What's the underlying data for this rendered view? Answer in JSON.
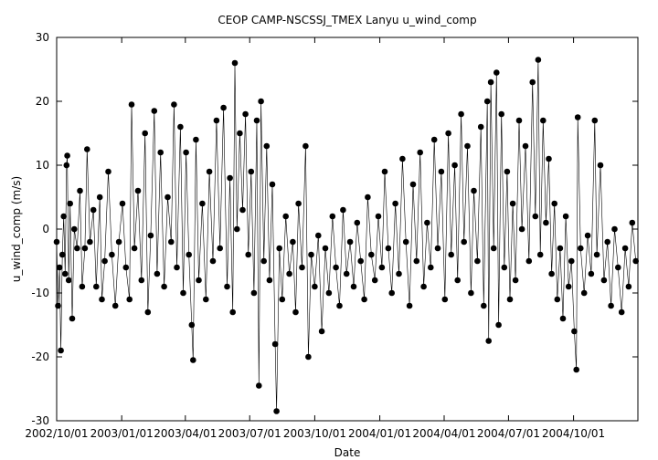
{
  "chart_data": {
    "type": "scatter",
    "title": "CEOP CAMP-NSCSSJ_TMEX Lanyu  u_wind_comp",
    "xlabel": "Date",
    "ylabel": "u_wind_comp (m/s)",
    "x_type": "date",
    "xlim": [
      "2002-10-01",
      "2004-12-31"
    ],
    "ylim": [
      -30,
      30
    ],
    "y_ticks": [
      30,
      20,
      10,
      0,
      -10,
      -20,
      -30
    ],
    "x_tick_labels": [
      "2002/10/01",
      "2003/01/01",
      "2003/04/01",
      "2003/07/01",
      "2003/10/01",
      "2004/01/01",
      "2004/04/01",
      "2004/07/01",
      "2004/10/01"
    ],
    "grid": false,
    "legend": false,
    "markers": "filled-circle-with-connecting-line",
    "series": [
      {
        "values": [
          [
            "2002-10-01",
            -2
          ],
          [
            "2002-10-03",
            -12
          ],
          [
            "2002-10-05",
            -6
          ],
          [
            "2002-10-07",
            -19
          ],
          [
            "2002-10-09",
            -4
          ],
          [
            "2002-10-11",
            2
          ],
          [
            "2002-10-13",
            -7
          ],
          [
            "2002-10-15",
            10
          ],
          [
            "2002-10-16",
            11.5
          ],
          [
            "2002-10-18",
            -8
          ],
          [
            "2002-10-20",
            4
          ],
          [
            "2002-10-23",
            -14
          ],
          [
            "2002-10-26",
            0
          ],
          [
            "2002-10-30",
            -3
          ],
          [
            "2002-11-03",
            6
          ],
          [
            "2002-11-06",
            -9
          ],
          [
            "2002-11-10",
            -3
          ],
          [
            "2002-11-13",
            12.5
          ],
          [
            "2002-11-17",
            -2
          ],
          [
            "2002-11-22",
            3
          ],
          [
            "2002-11-26",
            -9
          ],
          [
            "2002-12-01",
            5
          ],
          [
            "2002-12-04",
            -11
          ],
          [
            "2002-12-08",
            -5
          ],
          [
            "2002-12-13",
            9
          ],
          [
            "2002-12-18",
            -4
          ],
          [
            "2002-12-23",
            -12
          ],
          [
            "2002-12-28",
            -2
          ],
          [
            "2003-01-02",
            4
          ],
          [
            "2003-01-07",
            -6
          ],
          [
            "2003-01-12",
            -11
          ],
          [
            "2003-01-15",
            19.5
          ],
          [
            "2003-01-19",
            -3
          ],
          [
            "2003-01-24",
            6
          ],
          [
            "2003-01-29",
            -8
          ],
          [
            "2003-02-03",
            15
          ],
          [
            "2003-02-07",
            -13
          ],
          [
            "2003-02-11",
            -1
          ],
          [
            "2003-02-16",
            18.5
          ],
          [
            "2003-02-20",
            -7
          ],
          [
            "2003-02-25",
            12
          ],
          [
            "2003-03-02",
            -9
          ],
          [
            "2003-03-07",
            5
          ],
          [
            "2003-03-12",
            -2
          ],
          [
            "2003-03-16",
            19.5
          ],
          [
            "2003-03-20",
            -6
          ],
          [
            "2003-03-25",
            16
          ],
          [
            "2003-03-29",
            -10
          ],
          [
            "2003-04-02",
            12
          ],
          [
            "2003-04-06",
            -4
          ],
          [
            "2003-04-10",
            -15
          ],
          [
            "2003-04-12",
            -20.5
          ],
          [
            "2003-04-16",
            14
          ],
          [
            "2003-04-20",
            -8
          ],
          [
            "2003-04-25",
            4
          ],
          [
            "2003-04-30",
            -11
          ],
          [
            "2003-05-05",
            9
          ],
          [
            "2003-05-10",
            -5
          ],
          [
            "2003-05-15",
            17
          ],
          [
            "2003-05-20",
            -3
          ],
          [
            "2003-05-25",
            19
          ],
          [
            "2003-05-30",
            -9
          ],
          [
            "2003-06-03",
            8
          ],
          [
            "2003-06-07",
            -13
          ],
          [
            "2003-06-10",
            26
          ],
          [
            "2003-06-13",
            0
          ],
          [
            "2003-06-17",
            15
          ],
          [
            "2003-06-21",
            3
          ],
          [
            "2003-06-25",
            18
          ],
          [
            "2003-06-29",
            -4
          ],
          [
            "2003-07-03",
            9
          ],
          [
            "2003-07-07",
            -10
          ],
          [
            "2003-07-11",
            17
          ],
          [
            "2003-07-14",
            -24.5
          ],
          [
            "2003-07-17",
            20
          ],
          [
            "2003-07-21",
            -5
          ],
          [
            "2003-07-25",
            13
          ],
          [
            "2003-07-29",
            -8
          ],
          [
            "2003-08-02",
            7
          ],
          [
            "2003-08-06",
            -18
          ],
          [
            "2003-08-08",
            -28.5
          ],
          [
            "2003-08-12",
            -3
          ],
          [
            "2003-08-16",
            -11
          ],
          [
            "2003-08-21",
            2
          ],
          [
            "2003-08-26",
            -7
          ],
          [
            "2003-08-31",
            -2
          ],
          [
            "2003-09-04",
            -13
          ],
          [
            "2003-09-08",
            4
          ],
          [
            "2003-09-13",
            -6
          ],
          [
            "2003-09-18",
            13
          ],
          [
            "2003-09-22",
            -20
          ],
          [
            "2003-09-26",
            -4
          ],
          [
            "2003-10-01",
            -9
          ],
          [
            "2003-10-06",
            -1
          ],
          [
            "2003-10-11",
            -16
          ],
          [
            "2003-10-16",
            -3
          ],
          [
            "2003-10-21",
            -10
          ],
          [
            "2003-10-26",
            2
          ],
          [
            "2003-10-31",
            -6
          ],
          [
            "2003-11-05",
            -12
          ],
          [
            "2003-11-10",
            3
          ],
          [
            "2003-11-15",
            -7
          ],
          [
            "2003-11-20",
            -2
          ],
          [
            "2003-11-25",
            -9
          ],
          [
            "2003-11-30",
            1
          ],
          [
            "2003-12-05",
            -5
          ],
          [
            "2003-12-10",
            -11
          ],
          [
            "2003-12-15",
            5
          ],
          [
            "2003-12-20",
            -4
          ],
          [
            "2003-12-25",
            -8
          ],
          [
            "2003-12-30",
            2
          ],
          [
            "2004-01-04",
            -6
          ],
          [
            "2004-01-08",
            9
          ],
          [
            "2004-01-13",
            -3
          ],
          [
            "2004-01-18",
            -10
          ],
          [
            "2004-01-23",
            4
          ],
          [
            "2004-01-28",
            -7
          ],
          [
            "2004-02-02",
            11
          ],
          [
            "2004-02-07",
            -2
          ],
          [
            "2004-02-12",
            -12
          ],
          [
            "2004-02-17",
            7
          ],
          [
            "2004-02-22",
            -5
          ],
          [
            "2004-02-27",
            12
          ],
          [
            "2004-03-03",
            -9
          ],
          [
            "2004-03-08",
            1
          ],
          [
            "2004-03-13",
            -6
          ],
          [
            "2004-03-18",
            14
          ],
          [
            "2004-03-23",
            -3
          ],
          [
            "2004-03-28",
            9
          ],
          [
            "2004-04-02",
            -11
          ],
          [
            "2004-04-07",
            15
          ],
          [
            "2004-04-11",
            -4
          ],
          [
            "2004-04-16",
            10
          ],
          [
            "2004-04-20",
            -8
          ],
          [
            "2004-04-25",
            18
          ],
          [
            "2004-04-29",
            -2
          ],
          [
            "2004-05-04",
            13
          ],
          [
            "2004-05-09",
            -10
          ],
          [
            "2004-05-13",
            6
          ],
          [
            "2004-05-18",
            -5
          ],
          [
            "2004-05-23",
            16
          ],
          [
            "2004-05-27",
            -12
          ],
          [
            "2004-06-01",
            20
          ],
          [
            "2004-06-03",
            -17.5
          ],
          [
            "2004-06-06",
            23
          ],
          [
            "2004-06-10",
            -3
          ],
          [
            "2004-06-14",
            24.5
          ],
          [
            "2004-06-17",
            -15
          ],
          [
            "2004-06-21",
            18
          ],
          [
            "2004-06-25",
            -6
          ],
          [
            "2004-06-29",
            9
          ],
          [
            "2004-07-03",
            -11
          ],
          [
            "2004-07-07",
            4
          ],
          [
            "2004-07-11",
            -8
          ],
          [
            "2004-07-16",
            17
          ],
          [
            "2004-07-20",
            0
          ],
          [
            "2004-07-25",
            13
          ],
          [
            "2004-07-30",
            -5
          ],
          [
            "2004-08-04",
            23
          ],
          [
            "2004-08-08",
            2
          ],
          [
            "2004-08-12",
            26.5
          ],
          [
            "2004-08-15",
            -4
          ],
          [
            "2004-08-19",
            17
          ],
          [
            "2004-08-23",
            1
          ],
          [
            "2004-08-27",
            11
          ],
          [
            "2004-08-31",
            -7
          ],
          [
            "2004-09-04",
            4
          ],
          [
            "2004-09-08",
            -11
          ],
          [
            "2004-09-12",
            -3
          ],
          [
            "2004-09-16",
            -14
          ],
          [
            "2004-09-20",
            2
          ],
          [
            "2004-09-24",
            -9
          ],
          [
            "2004-09-28",
            -5
          ],
          [
            "2004-10-02",
            -16
          ],
          [
            "2004-10-05",
            -22
          ],
          [
            "2004-10-07",
            17.5
          ],
          [
            "2004-10-11",
            -3
          ],
          [
            "2004-10-16",
            -10
          ],
          [
            "2004-10-21",
            -1
          ],
          [
            "2004-10-26",
            -7
          ],
          [
            "2004-10-31",
            17
          ],
          [
            "2004-11-03",
            -4
          ],
          [
            "2004-11-08",
            10
          ],
          [
            "2004-11-13",
            -8
          ],
          [
            "2004-11-18",
            -2
          ],
          [
            "2004-11-23",
            -12
          ],
          [
            "2004-11-28",
            0
          ],
          [
            "2004-12-03",
            -6
          ],
          [
            "2004-12-08",
            -13
          ],
          [
            "2004-12-13",
            -3
          ],
          [
            "2004-12-18",
            -9
          ],
          [
            "2004-12-23",
            1
          ],
          [
            "2004-12-28",
            -5
          ]
        ]
      }
    ]
  }
}
